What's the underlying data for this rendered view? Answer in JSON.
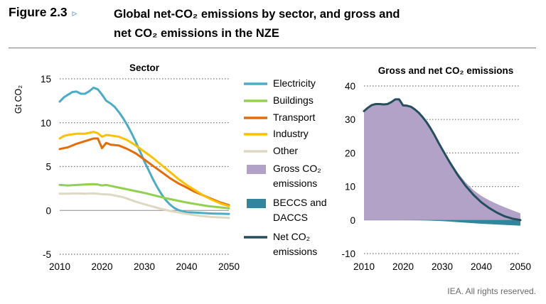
{
  "header": {
    "figure_label": "Figure 2.3",
    "figure_marker": "▹",
    "title_line1": "Global net-CO₂ emissions by sector, and gross and",
    "title_line2": "net CO₂ emissions in the NZE"
  },
  "footer": {
    "credit": "IEA. All rights reserved."
  },
  "chart_data": [
    {
      "type": "line",
      "title": "Sector",
      "ylabel": "Gt CO₂",
      "ylim": [
        -5,
        15
      ],
      "yticks": [
        -5,
        0,
        5,
        10,
        15
      ],
      "xlim": [
        2010,
        2050
      ],
      "xticks": [
        2010,
        2020,
        2030,
        2040,
        2050
      ],
      "grid": "horizontal dotted",
      "series": [
        {
          "name": "Electricity",
          "color": "#4bacc6",
          "points": [
            [
              2010,
              12.4
            ],
            [
              2011,
              12.9
            ],
            [
              2012,
              13.2
            ],
            [
              2013,
              13.5
            ],
            [
              2014,
              13.55
            ],
            [
              2015,
              13.3
            ],
            [
              2016,
              13.3
            ],
            [
              2017,
              13.6
            ],
            [
              2018,
              14.0
            ],
            [
              2019,
              13.8
            ],
            [
              2020,
              13.2
            ],
            [
              2021,
              12.5
            ],
            [
              2022,
              12.2
            ],
            [
              2023,
              11.8
            ],
            [
              2024,
              11.2
            ],
            [
              2025,
              10.5
            ],
            [
              2026,
              9.7
            ],
            [
              2027,
              8.8
            ],
            [
              2028,
              7.8
            ],
            [
              2029,
              6.7
            ],
            [
              2030,
              5.6
            ],
            [
              2031,
              4.6
            ],
            [
              2032,
              3.6
            ],
            [
              2033,
              2.7
            ],
            [
              2034,
              1.9
            ],
            [
              2035,
              1.2
            ],
            [
              2036,
              0.7
            ],
            [
              2037,
              0.3
            ],
            [
              2038,
              0.05
            ],
            [
              2039,
              -0.1
            ],
            [
              2040,
              -0.2
            ],
            [
              2042,
              -0.25
            ],
            [
              2044,
              -0.3
            ],
            [
              2046,
              -0.35
            ],
            [
              2048,
              -0.38
            ],
            [
              2050,
              -0.4
            ]
          ]
        },
        {
          "name": "Buildings",
          "color": "#92d050",
          "points": [
            [
              2010,
              2.9
            ],
            [
              2012,
              2.85
            ],
            [
              2014,
              2.9
            ],
            [
              2016,
              2.95
            ],
            [
              2018,
              3.0
            ],
            [
              2019,
              2.95
            ],
            [
              2020,
              2.85
            ],
            [
              2021,
              2.9
            ],
            [
              2022,
              2.8
            ],
            [
              2025,
              2.5
            ],
            [
              2028,
              2.2
            ],
            [
              2030,
              2.0
            ],
            [
              2035,
              1.4
            ],
            [
              2040,
              0.9
            ],
            [
              2045,
              0.5
            ],
            [
              2050,
              0.25
            ]
          ]
        },
        {
          "name": "Transport",
          "color": "#e46c0a",
          "points": [
            [
              2010,
              7.0
            ],
            [
              2012,
              7.2
            ],
            [
              2014,
              7.6
            ],
            [
              2016,
              7.9
            ],
            [
              2018,
              8.2
            ],
            [
              2019,
              8.2
            ],
            [
              2020,
              7.1
            ],
            [
              2021,
              7.7
            ],
            [
              2022,
              7.5
            ],
            [
              2024,
              7.4
            ],
            [
              2026,
              7.0
            ],
            [
              2028,
              6.5
            ],
            [
              2030,
              5.8
            ],
            [
              2032,
              5.1
            ],
            [
              2034,
              4.4
            ],
            [
              2036,
              3.7
            ],
            [
              2038,
              3.1
            ],
            [
              2040,
              2.6
            ],
            [
              2042,
              2.1
            ],
            [
              2044,
              1.7
            ],
            [
              2046,
              1.3
            ],
            [
              2048,
              0.9
            ],
            [
              2050,
              0.6
            ]
          ]
        },
        {
          "name": "Industry",
          "color": "#ffc000",
          "points": [
            [
              2010,
              8.2
            ],
            [
              2011,
              8.5
            ],
            [
              2012,
              8.6
            ],
            [
              2014,
              8.75
            ],
            [
              2016,
              8.75
            ],
            [
              2018,
              8.95
            ],
            [
              2019,
              8.8
            ],
            [
              2020,
              8.4
            ],
            [
              2021,
              8.6
            ],
            [
              2022,
              8.55
            ],
            [
              2024,
              8.4
            ],
            [
              2026,
              8.0
            ],
            [
              2028,
              7.4
            ],
            [
              2030,
              6.7
            ],
            [
              2032,
              6.0
            ],
            [
              2034,
              5.2
            ],
            [
              2036,
              4.4
            ],
            [
              2038,
              3.6
            ],
            [
              2040,
              2.9
            ],
            [
              2042,
              2.3
            ],
            [
              2044,
              1.7
            ],
            [
              2046,
              1.2
            ],
            [
              2048,
              0.8
            ],
            [
              2050,
              0.5
            ]
          ]
        },
        {
          "name": "Other",
          "color": "#ddd9c3",
          "points": [
            [
              2010,
              1.9
            ],
            [
              2012,
              1.9
            ],
            [
              2014,
              1.95
            ],
            [
              2016,
              1.9
            ],
            [
              2018,
              1.95
            ],
            [
              2020,
              1.85
            ],
            [
              2022,
              1.8
            ],
            [
              2025,
              1.5
            ],
            [
              2028,
              1.0
            ],
            [
              2030,
              0.7
            ],
            [
              2033,
              0.3
            ],
            [
              2036,
              -0.05
            ],
            [
              2040,
              -0.4
            ],
            [
              2043,
              -0.6
            ],
            [
              2046,
              -0.75
            ],
            [
              2050,
              -0.85
            ]
          ]
        }
      ]
    },
    {
      "type": "area",
      "title": "Gross and net CO₂ emissions",
      "ylim": [
        -10,
        40
      ],
      "yticks": [
        -10,
        0,
        10,
        20,
        30,
        40
      ],
      "xlim": [
        2010,
        2050
      ],
      "xticks": [
        2010,
        2020,
        2030,
        2040,
        2050
      ],
      "grid": "horizontal dotted",
      "series": [
        {
          "name": "Gross CO₂ emissions",
          "kind": "area",
          "color": "#b3a2c7",
          "points": [
            [
              2010,
              32.5
            ],
            [
              2011,
              33.5
            ],
            [
              2012,
              34.3
            ],
            [
              2013,
              34.6
            ],
            [
              2014,
              34.6
            ],
            [
              2015,
              34.5
            ],
            [
              2016,
              34.6
            ],
            [
              2017,
              35.2
            ],
            [
              2018,
              36.0
            ],
            [
              2019,
              36.0
            ],
            [
              2020,
              34.2
            ],
            [
              2021,
              34.1
            ],
            [
              2022,
              33.8
            ],
            [
              2023,
              33.0
            ],
            [
              2024,
              32.0
            ],
            [
              2025,
              30.8
            ],
            [
              2026,
              29.3
            ],
            [
              2027,
              27.6
            ],
            [
              2028,
              25.7
            ],
            [
              2029,
              23.6
            ],
            [
              2030,
              21.4
            ],
            [
              2032,
              17.6
            ],
            [
              2034,
              14.1
            ],
            [
              2036,
              11.2
            ],
            [
              2038,
              8.9
            ],
            [
              2040,
              7.2
            ],
            [
              2042,
              5.9
            ],
            [
              2044,
              4.8
            ],
            [
              2046,
              3.8
            ],
            [
              2048,
              2.9
            ],
            [
              2050,
              2.0
            ]
          ]
        },
        {
          "name": "BECCS and DACCS",
          "kind": "area",
          "color": "#31859c",
          "points": [
            [
              2010,
              0
            ],
            [
              2020,
              0
            ],
            [
              2025,
              -0.1
            ],
            [
              2030,
              -0.3
            ],
            [
              2035,
              -0.7
            ],
            [
              2040,
              -1.1
            ],
            [
              2045,
              -1.4
            ],
            [
              2050,
              -1.7
            ]
          ]
        },
        {
          "name": "Net CO₂ emissions",
          "kind": "line",
          "color": "#254e5e",
          "points": [
            [
              2010,
              32.5
            ],
            [
              2011,
              33.5
            ],
            [
              2012,
              34.3
            ],
            [
              2013,
              34.6
            ],
            [
              2014,
              34.6
            ],
            [
              2015,
              34.5
            ],
            [
              2016,
              34.6
            ],
            [
              2017,
              35.2
            ],
            [
              2018,
              36.0
            ],
            [
              2019,
              36.0
            ],
            [
              2020,
              34.2
            ],
            [
              2021,
              34.1
            ],
            [
              2022,
              33.8
            ],
            [
              2023,
              33.0
            ],
            [
              2024,
              32.0
            ],
            [
              2025,
              30.7
            ],
            [
              2026,
              29.2
            ],
            [
              2027,
              27.4
            ],
            [
              2028,
              25.4
            ],
            [
              2029,
              23.2
            ],
            [
              2030,
              21.1
            ],
            [
              2032,
              17.1
            ],
            [
              2034,
              13.4
            ],
            [
              2036,
              10.2
            ],
            [
              2038,
              7.5
            ],
            [
              2040,
              5.3
            ],
            [
              2042,
              3.6
            ],
            [
              2044,
              2.2
            ],
            [
              2046,
              1.1
            ],
            [
              2048,
              0.4
            ],
            [
              2050,
              0.0
            ]
          ]
        }
      ]
    }
  ],
  "legend": [
    {
      "label_lines": [
        "Electricity"
      ],
      "kind": "line",
      "color": "#4bacc6"
    },
    {
      "label_lines": [
        "Buildings"
      ],
      "kind": "line",
      "color": "#92d050"
    },
    {
      "label_lines": [
        "Transport"
      ],
      "kind": "line",
      "color": "#e46c0a"
    },
    {
      "label_lines": [
        "Industry"
      ],
      "kind": "line",
      "color": "#ffc000"
    },
    {
      "label_lines": [
        "Other"
      ],
      "kind": "line",
      "color": "#ddd9c3"
    },
    {
      "label_lines": [
        "Gross CO₂",
        "emissions"
      ],
      "kind": "box",
      "color": "#b3a2c7"
    },
    {
      "label_lines": [
        "BECCS and",
        "DACCS"
      ],
      "kind": "box",
      "color": "#31859c"
    },
    {
      "label_lines": [
        "Net CO₂",
        "emissions"
      ],
      "kind": "line",
      "color": "#254e5e"
    }
  ]
}
